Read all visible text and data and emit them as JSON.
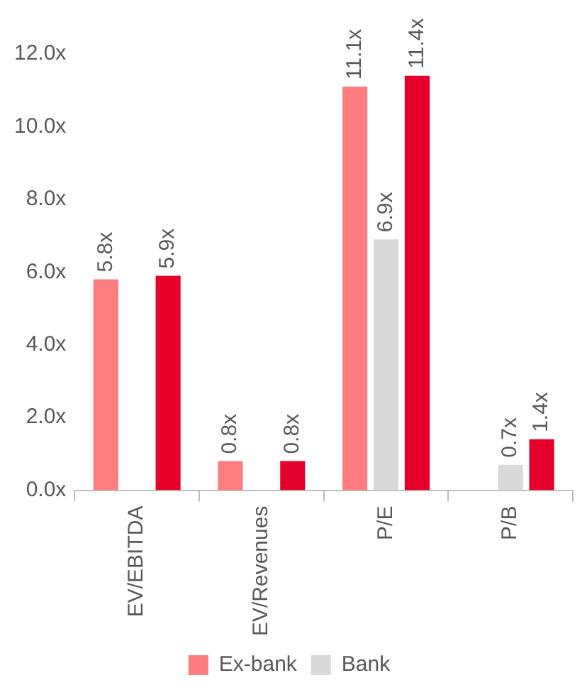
{
  "chart_data": {
    "type": "bar",
    "categories": [
      "EV/EBITDA",
      "EV/Revenues",
      "P/E",
      "P/B"
    ],
    "series": [
      {
        "name": "Ex-bank",
        "color": "#ff7c80",
        "values": [
          5.8,
          0.8,
          11.1,
          null
        ],
        "value_labels": [
          "5.8x",
          "0.8x",
          "11.1x",
          null
        ]
      },
      {
        "name": "Bank",
        "color": "#d9d9d9",
        "values": [
          null,
          null,
          6.9,
          0.7
        ],
        "value_labels": [
          null,
          null,
          "6.9x",
          "0.7x"
        ]
      },
      {
        "color": "#e4002b",
        "values": [
          5.9,
          0.8,
          11.4,
          1.4
        ],
        "value_labels": [
          "5.9x",
          "0.8x",
          "11.4x",
          "1.4x"
        ]
      }
    ],
    "ylim": [
      0,
      12
    ],
    "yticks": [
      {
        "value": 0,
        "label": "0.0x"
      },
      {
        "value": 2,
        "label": "2.0x"
      },
      {
        "value": 4,
        "label": "4.0x"
      },
      {
        "value": 6,
        "label": "6.0x"
      },
      {
        "value": 8,
        "label": "8.0x"
      },
      {
        "value": 10,
        "label": "10.0x"
      },
      {
        "value": 12,
        "label": "12.0x"
      }
    ],
    "grid": false,
    "legend": "bottom"
  }
}
